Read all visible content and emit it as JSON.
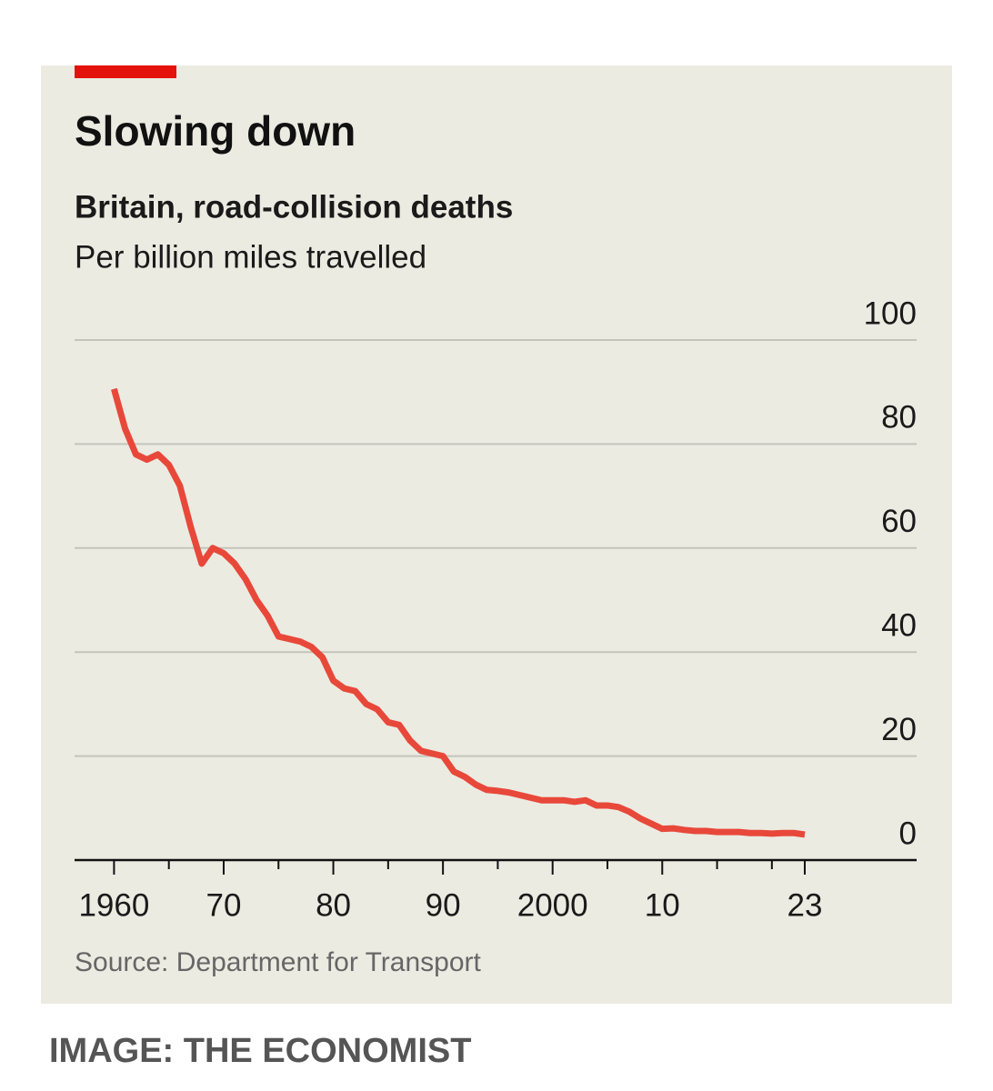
{
  "chart_data": {
    "type": "line",
    "title": "Slowing down",
    "subtitle": "Britain, road-collision deaths",
    "y_label": "Per billion miles travelled",
    "source": "Source: Department for Transport",
    "credit": "IMAGE: THE ECONOMIST",
    "color": "#e8483a",
    "x": [
      1960,
      1961,
      1962,
      1963,
      1964,
      1965,
      1966,
      1967,
      1968,
      1969,
      1970,
      1971,
      1972,
      1973,
      1974,
      1975,
      1976,
      1977,
      1978,
      1979,
      1980,
      1981,
      1982,
      1983,
      1984,
      1985,
      1986,
      1987,
      1988,
      1989,
      1990,
      1991,
      1992,
      1993,
      1994,
      1995,
      1996,
      1997,
      1998,
      1999,
      2000,
      2001,
      2002,
      2003,
      2004,
      2005,
      2006,
      2007,
      2008,
      2009,
      2010,
      2011,
      2012,
      2013,
      2014,
      2015,
      2016,
      2017,
      2018,
      2019,
      2020,
      2021,
      2022,
      2023
    ],
    "values": [
      90.6,
      83,
      78,
      77,
      78,
      76,
      72,
      64,
      57,
      60,
      59,
      57,
      54,
      50,
      47,
      43,
      42.5,
      42,
      41,
      39,
      34.5,
      33,
      32.5,
      30,
      29,
      26.5,
      26,
      23,
      21,
      20.5,
      20,
      17,
      16,
      14.5,
      13.5,
      13.3,
      13,
      12.5,
      12,
      11.5,
      11.5,
      11.5,
      11.2,
      11.5,
      10.5,
      10.5,
      10.2,
      9.3,
      8,
      7,
      6,
      6.1,
      5.8,
      5.6,
      5.6,
      5.4,
      5.4,
      5.4,
      5.2,
      5.2,
      5.1,
      5.2,
      5.2,
      4.9
    ],
    "xlim": [
      1956.4,
      2033.2
    ],
    "ylim": [
      0,
      100
    ],
    "xticks": [
      1960,
      {
        "value": 1970,
        "label": "70"
      },
      {
        "value": 1980,
        "label": "80"
      },
      {
        "value": 1990,
        "label": "90"
      },
      2000,
      {
        "value": 2010,
        "label": "10"
      },
      {
        "value": 2023,
        "label": "23"
      }
    ],
    "xticks_minor": [
      1965,
      1975,
      1985,
      1995,
      2005,
      2015,
      2020
    ],
    "yticks": [
      0,
      20,
      40,
      60,
      80,
      100
    ],
    "grid": true
  }
}
